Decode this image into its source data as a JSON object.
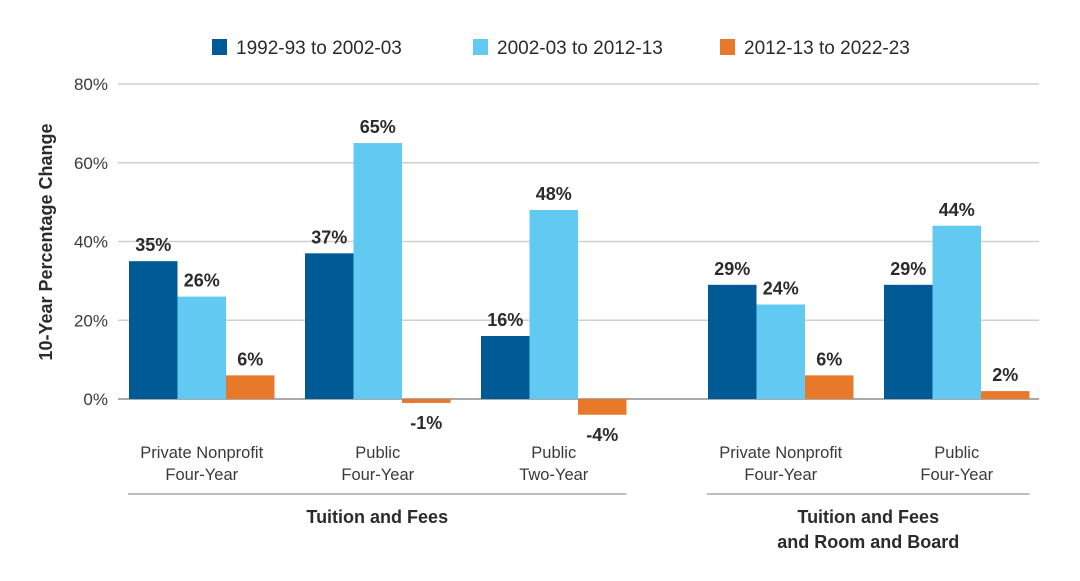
{
  "chart_data": {
    "type": "bar",
    "title": "",
    "xlabel": "",
    "ylabel": "10-Year Percentage Change",
    "ylim": [
      0,
      80
    ],
    "yticks": [
      "0%",
      "20%",
      "40%",
      "60%",
      "80%"
    ],
    "ytick_values": [
      0,
      20,
      40,
      60,
      80
    ],
    "grid": true,
    "legend_position": "top-center",
    "categories": [
      [
        "Private Nonprofit",
        "Four-Year"
      ],
      [
        "Public",
        "Four-Year"
      ],
      [
        "Public",
        "Two-Year"
      ],
      [
        "Private Nonprofit",
        "Four-Year"
      ],
      [
        "Public",
        "Four-Year"
      ]
    ],
    "groups": [
      {
        "label": [
          "Tuition and Fees"
        ],
        "categories": [
          0,
          1,
          2
        ]
      },
      {
        "label": [
          "Tuition and Fees",
          "and Room and Board"
        ],
        "categories": [
          3,
          4
        ]
      }
    ],
    "series": [
      {
        "name": "1992-93 to 2002-03",
        "color": "#005A96",
        "values": [
          35,
          37,
          16,
          29,
          29
        ],
        "labels": [
          "35%",
          "37%",
          "16%",
          "29%",
          "29%"
        ]
      },
      {
        "name": "2002-03 to 2012-13",
        "color": "#62C9F2",
        "values": [
          26,
          65,
          48,
          24,
          44
        ],
        "labels": [
          "26%",
          "65%",
          "48%",
          "24%",
          "44%"
        ]
      },
      {
        "name": "2012-13 to 2022-23",
        "color": "#E8782A",
        "values": [
          6,
          -1,
          -4,
          6,
          2
        ],
        "labels": [
          "6%",
          "-1%",
          "-4%",
          "6%",
          "2%"
        ]
      }
    ]
  }
}
